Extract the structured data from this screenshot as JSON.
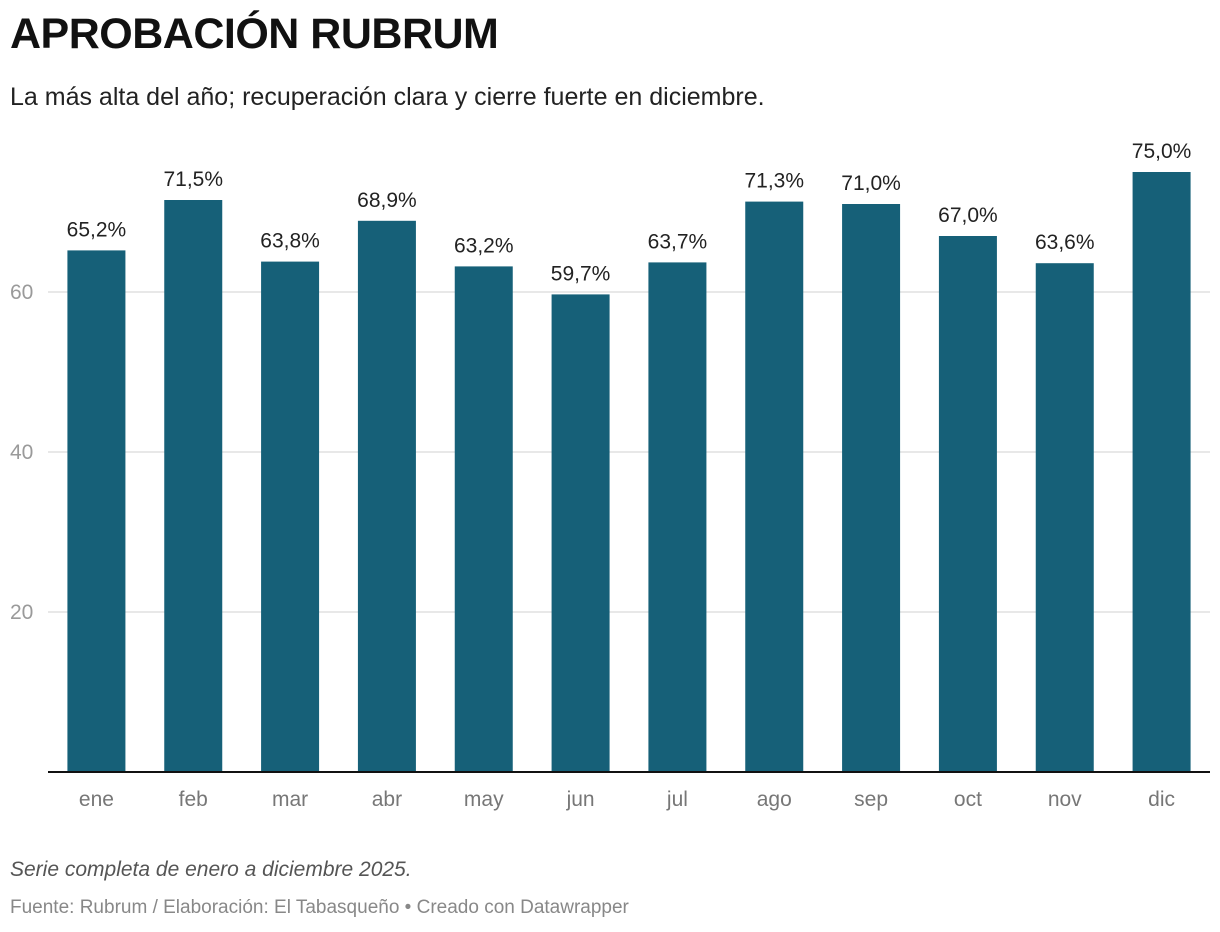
{
  "header": {
    "title": "APROBACIÓN RUBRUM",
    "subtitle": "La más alta del año; recuperación clara y cierre fuerte en diciembre."
  },
  "footer": {
    "note": "Serie completa de enero a diciembre 2025.",
    "source": "Fuente: Rubrum / Elaboración: El Tabasqueño • Creado con Datawrapper"
  },
  "colors": {
    "bar": "#166078",
    "grid": "#e0e0e0",
    "baseline": "#111111"
  },
  "chart_data": {
    "type": "bar",
    "categories": [
      "ene",
      "feb",
      "mar",
      "abr",
      "may",
      "jun",
      "jul",
      "ago",
      "sep",
      "oct",
      "nov",
      "dic"
    ],
    "values": [
      65.2,
      71.5,
      63.8,
      68.9,
      63.2,
      59.7,
      63.7,
      71.3,
      71.0,
      67.0,
      63.6,
      75.0
    ],
    "value_labels": [
      "65,2%",
      "71,5%",
      "63,8%",
      "68,9%",
      "63,2%",
      "59,7%",
      "63,7%",
      "71,3%",
      "71,0%",
      "67,0%",
      "63,6%",
      "75,0%"
    ],
    "y_ticks": [
      20,
      40,
      60
    ],
    "y_tick_labels": [
      "20",
      "40",
      "60"
    ],
    "ylim": [
      0,
      75
    ],
    "grid": true,
    "legend": "none"
  }
}
